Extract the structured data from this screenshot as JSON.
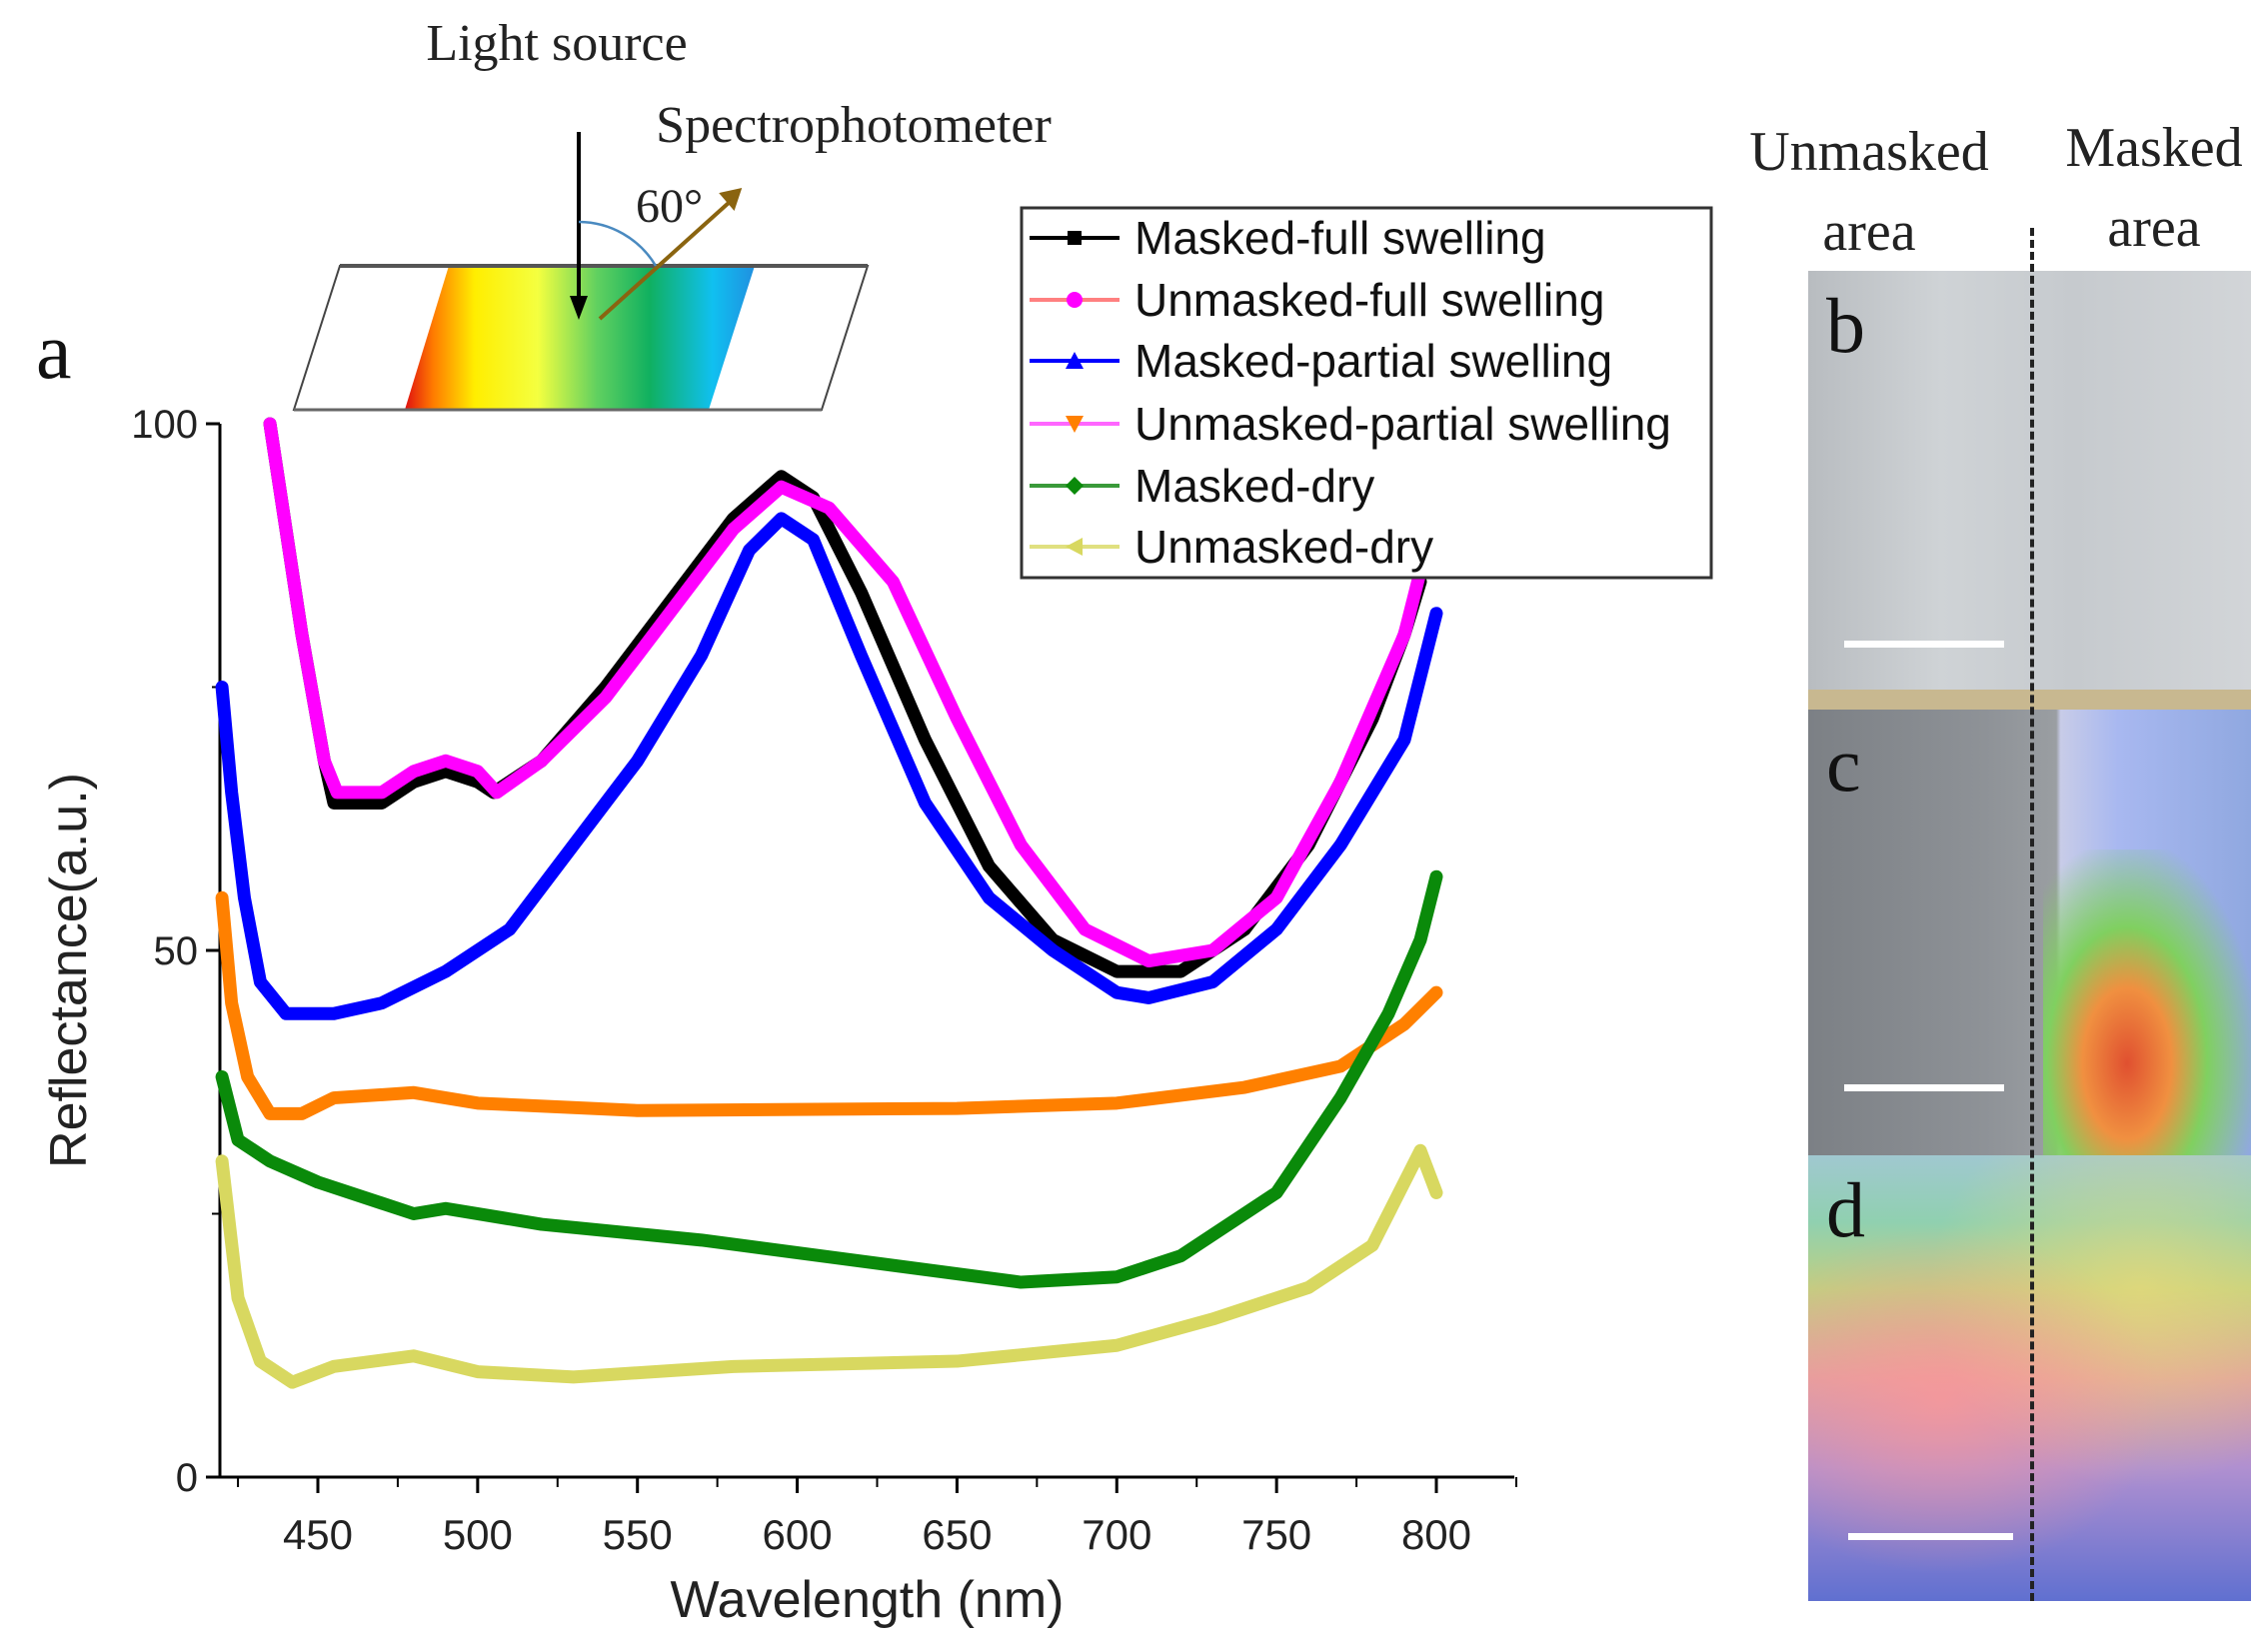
{
  "diagram": {
    "panel_letter": "a",
    "light_source": "Light source",
    "spectrophotometer": "Spectrophotometer",
    "angle": "60°"
  },
  "photos": {
    "unmasked_header": [
      "Unmasked",
      "area"
    ],
    "masked_header": [
      "Masked",
      "area"
    ],
    "panels": [
      {
        "letter": "b"
      },
      {
        "letter": "c"
      },
      {
        "letter": "d"
      }
    ]
  },
  "chart_data": {
    "type": "line",
    "title": "",
    "xlabel": "Wavelength (nm)",
    "ylabel": "Reflectance(a.u.)",
    "xlim": [
      418,
      824
    ],
    "ylim": [
      0,
      100
    ],
    "xticks": [
      450,
      500,
      550,
      600,
      650,
      700,
      750,
      800
    ],
    "yticks": [
      0,
      50,
      100
    ],
    "legend_position": "top-right",
    "series": [
      {
        "name": "Masked-full swelling",
        "color": "#000000",
        "line_color": "#000000",
        "marker": "square",
        "x": [
          435,
          445,
          452,
          455,
          470,
          480,
          490,
          500,
          505,
          520,
          540,
          560,
          580,
          595,
          605,
          620,
          640,
          660,
          680,
          700,
          720,
          740,
          760,
          780,
          790,
          795
        ],
        "y": [
          100,
          80,
          68,
          64,
          64,
          66,
          67,
          66,
          65,
          68,
          75,
          83,
          91,
          95,
          93,
          84,
          70,
          58,
          51,
          48,
          48,
          52,
          60,
          72,
          80,
          85
        ]
      },
      {
        "name": "Unmasked-full swelling",
        "color": "#ff00ff",
        "line_color": "#ff8080",
        "marker": "circle",
        "x": [
          435,
          445,
          452,
          456,
          470,
          480,
          490,
          500,
          506,
          520,
          540,
          560,
          580,
          595,
          610,
          630,
          650,
          670,
          690,
          710,
          730,
          750,
          770,
          790,
          795
        ],
        "y": [
          100,
          80,
          68,
          65,
          65,
          67,
          68,
          67,
          65,
          68,
          74,
          82,
          90,
          94,
          92,
          85,
          72,
          60,
          52,
          49,
          50,
          55,
          66,
          80,
          86
        ]
      },
      {
        "name": "Masked-partial swelling",
        "color": "#0000ff",
        "line_color": "#0000ff",
        "marker": "triangle-up",
        "x": [
          420,
          423,
          427,
          432,
          440,
          455,
          470,
          490,
          510,
          530,
          550,
          570,
          585,
          595,
          605,
          620,
          640,
          660,
          680,
          700,
          710,
          730,
          750,
          770,
          790,
          800
        ],
        "y": [
          75,
          65,
          55,
          47,
          44,
          44,
          45,
          48,
          52,
          60,
          68,
          78,
          88,
          91,
          89,
          78,
          64,
          55,
          50,
          46,
          45.5,
          47,
          52,
          60,
          70,
          82
        ]
      },
      {
        "name": "Unmasked-partial swelling",
        "color": "#ff8000",
        "line_color": "#ff66ff",
        "marker": "triangle-down",
        "x": [
          420,
          423,
          428,
          435,
          445,
          455,
          480,
          500,
          550,
          650,
          700,
          740,
          770,
          790,
          800
        ],
        "y": [
          55,
          45,
          38,
          34.5,
          34.5,
          36,
          36.5,
          35.5,
          34.8,
          35,
          35.5,
          37,
          39,
          43,
          46
        ]
      },
      {
        "name": "Masked-dry",
        "color": "#0a8a0a",
        "line_color": "#3a9a3a",
        "marker": "diamond",
        "x": [
          420,
          425,
          435,
          450,
          480,
          490,
          520,
          570,
          620,
          670,
          700,
          720,
          750,
          770,
          785,
          795,
          800
        ],
        "y": [
          38,
          32,
          30,
          28,
          25,
          25.5,
          24,
          22.5,
          20.5,
          18.5,
          19,
          21,
          27,
          36,
          44,
          51,
          57
        ]
      },
      {
        "name": "Unmasked-dry",
        "color": "#d8d860",
        "line_color": "#e0e080",
        "marker": "triangle-left",
        "x": [
          420,
          425,
          432,
          442,
          455,
          480,
          500,
          530,
          580,
          650,
          700,
          730,
          760,
          780,
          795,
          800
        ],
        "y": [
          30,
          17,
          11,
          9,
          10.5,
          11.5,
          10,
          9.5,
          10.5,
          11,
          12.5,
          15,
          18,
          22,
          31,
          27
        ]
      }
    ]
  }
}
